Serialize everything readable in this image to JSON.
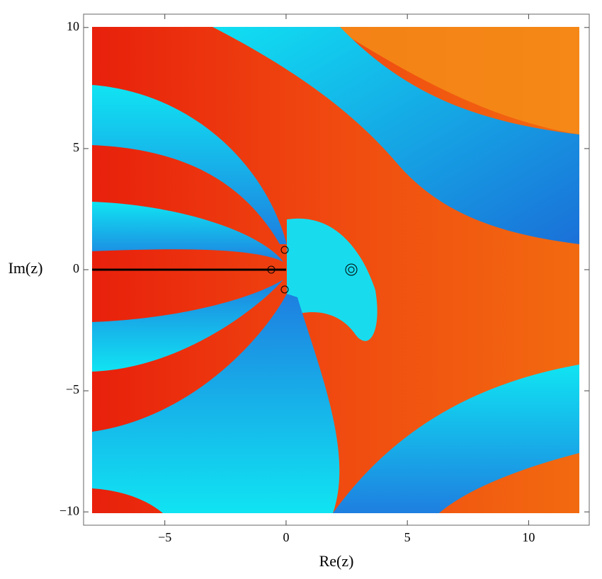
{
  "chart_data": {
    "type": "domain-coloring",
    "xlabel": "Re(z)",
    "ylabel": "Im(z)",
    "xlim": [
      -8.35,
      12.5
    ],
    "ylim": [
      -10.55,
      10.55
    ],
    "xticks": [
      {
        "value": -5,
        "label": "−5"
      },
      0,
      5,
      10
    ],
    "yticks": [
      {
        "value": -10,
        "label": "−10"
      },
      {
        "value": -5,
        "label": "−5"
      },
      0,
      5,
      10
    ]
  }
}
